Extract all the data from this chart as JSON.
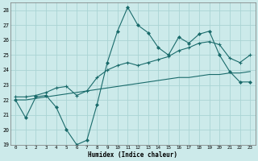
{
  "xlabel": "Humidex (Indice chaleur)",
  "background_color": "#cceaea",
  "grid_color": "#aad4d4",
  "line_color": "#1a6b6b",
  "xlim": [
    -0.5,
    23.5
  ],
  "ylim": [
    19.0,
    28.5
  ],
  "xticks": [
    0,
    1,
    2,
    3,
    4,
    5,
    6,
    7,
    8,
    9,
    10,
    11,
    12,
    13,
    14,
    15,
    16,
    17,
    18,
    19,
    20,
    21,
    22,
    23
  ],
  "yticks": [
    19,
    20,
    21,
    22,
    23,
    24,
    25,
    26,
    27,
    28
  ],
  "line1_x": [
    0,
    1,
    2,
    3,
    4,
    5,
    6,
    7,
    8,
    9,
    10,
    11,
    12,
    13,
    14,
    15,
    16,
    17,
    18,
    19,
    20,
    21,
    22,
    23
  ],
  "line1_y": [
    22.0,
    20.8,
    22.2,
    22.3,
    21.5,
    20.0,
    19.0,
    19.3,
    21.7,
    24.5,
    26.6,
    28.2,
    27.0,
    26.5,
    25.5,
    25.0,
    26.2,
    25.8,
    26.4,
    26.6,
    25.0,
    23.9,
    23.2,
    23.2
  ],
  "line2_x": [
    0,
    1,
    2,
    3,
    4,
    5,
    6,
    7,
    8,
    9,
    10,
    11,
    12,
    13,
    14,
    15,
    16,
    17,
    18,
    19,
    20,
    21,
    22,
    23
  ],
  "line2_y": [
    22.2,
    22.2,
    22.3,
    22.5,
    22.8,
    22.9,
    22.3,
    22.6,
    23.5,
    24.0,
    24.3,
    24.5,
    24.3,
    24.5,
    24.7,
    24.9,
    25.3,
    25.5,
    25.8,
    25.9,
    25.7,
    24.8,
    24.5,
    25.0
  ],
  "line3_x": [
    0,
    1,
    2,
    3,
    4,
    5,
    6,
    7,
    8,
    9,
    10,
    11,
    12,
    13,
    14,
    15,
    16,
    17,
    18,
    19,
    20,
    21,
    22,
    23
  ],
  "line3_y": [
    22.0,
    22.0,
    22.1,
    22.2,
    22.3,
    22.4,
    22.5,
    22.6,
    22.7,
    22.8,
    22.9,
    23.0,
    23.1,
    23.2,
    23.3,
    23.4,
    23.5,
    23.5,
    23.6,
    23.7,
    23.7,
    23.8,
    23.8,
    23.9
  ]
}
